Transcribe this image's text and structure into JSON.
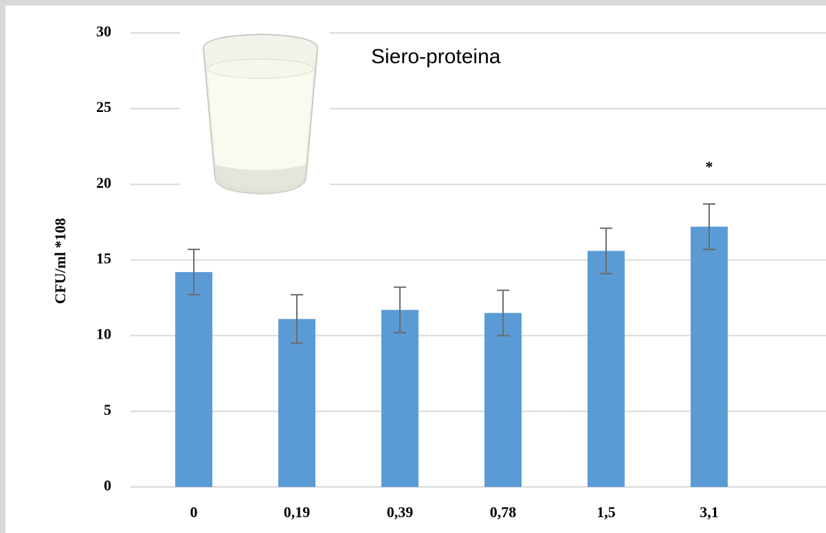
{
  "chart_data": {
    "type": "bar",
    "y_label": "CFU/ml *108",
    "annotations": [
      "Siero-proteina",
      "*"
    ],
    "categories": [
      "0",
      "0,19",
      "0,39",
      "0,78",
      "1,5",
      "3,1"
    ],
    "values": [
      14.2,
      11.1,
      11.7,
      11.5,
      15.6,
      17.2
    ],
    "errors": [
      1.5,
      1.6,
      1.5,
      1.5,
      1.5,
      1.5
    ],
    "color": "#5b9bd5",
    "ylim": [
      0,
      30
    ],
    "yticks": [
      0,
      5,
      10,
      15,
      20,
      25,
      30
    ],
    "grid": true
  }
}
